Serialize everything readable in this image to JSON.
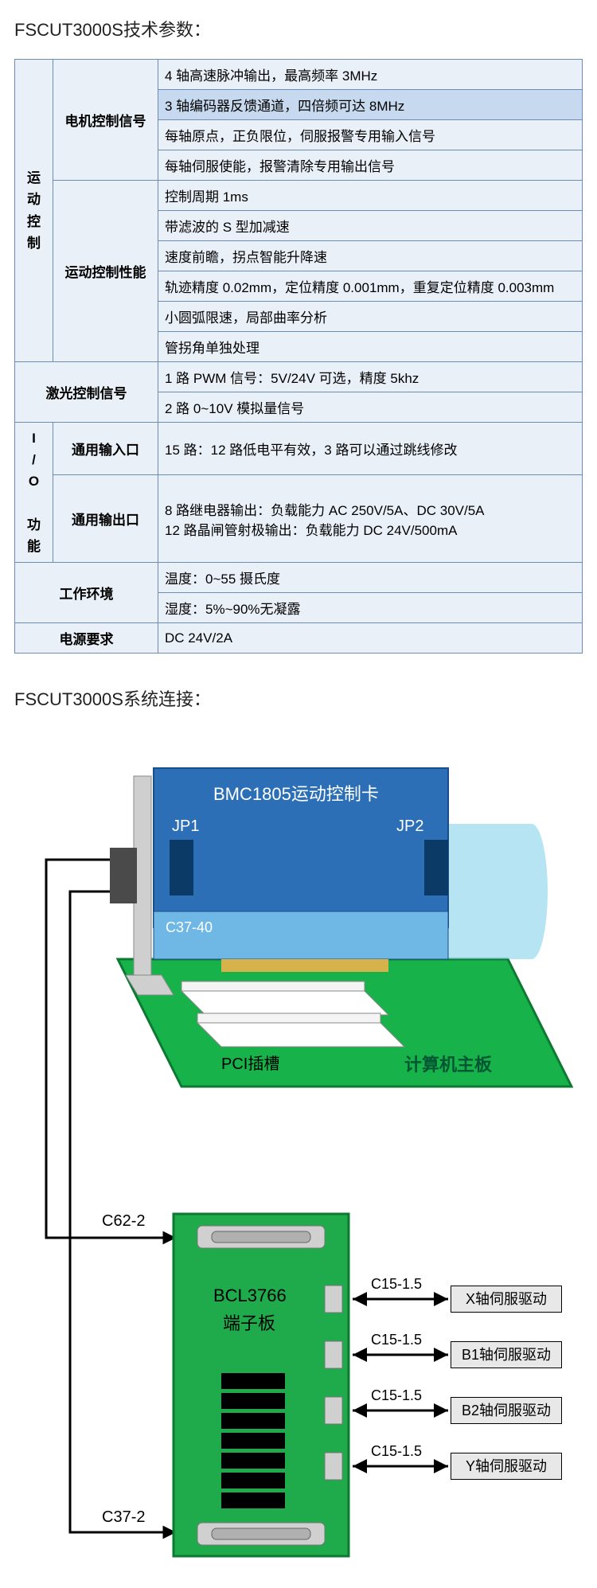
{
  "titles": {
    "specs": "FSCUT3000S技术参数：",
    "conn": "FSCUT3000S系统连接："
  },
  "spec_table": {
    "motion_vert": "运动控制",
    "motor_sig": "电机控制信号",
    "motor_rows": [
      "4 轴高速脉冲输出，最高频率 3MHz",
      "3 轴编码器反馈通道，四倍频可达 8MHz",
      "每轴原点，正负限位，伺服报警专用输入信号",
      "每轴伺服使能，报警清除专用输出信号"
    ],
    "motion_perf": "运动控制性能",
    "motion_rows": [
      "控制周期 1ms",
      "带滤波的 S 型加减速",
      "速度前瞻，拐点智能升降速",
      "轨迹精度 0.02mm，定位精度 0.001mm，重复定位精度 0.003mm",
      "小圆弧限速，局部曲率分析",
      "管拐角单独处理"
    ],
    "laser_lbl": "激光控制信号",
    "laser_rows": [
      "1 路 PWM 信号：5V/24V 可选，精度 5khz",
      "2 路 0~10V 模拟量信号"
    ],
    "io_lbl": "I/O 功能",
    "io_in_lbl": "通用输入口",
    "io_in": "15 路：12 路低电平有效，3 路可以通过跳线修改",
    "io_out_lbl": "通用输出口",
    "io_out": "8 路继电器输出：负载能力  AC 250V/5A、DC 30V/5A\n12 路晶闸管射极输出：负载能力  DC 24V/500mA",
    "env_lbl": "工作环境",
    "env_rows": [
      "温度：0~55 摄氏度",
      "湿度：5%~90%无凝露"
    ],
    "power_lbl": "电源要求",
    "power_val": "DC 24V/2A"
  },
  "diagram": {
    "card_title": "BMC1805运动控制卡",
    "jp1": "JP1",
    "jp2": "JP2",
    "c37_40": "C37-40",
    "pci_slot": "PCI插槽",
    "motherboard": "计算机主板",
    "c62_2": "C62-2",
    "c37_2": "C37-2",
    "terminal_name": "BCL3766",
    "terminal_sub": "端子板",
    "cable": "C15-1.5",
    "drives": [
      "X轴伺服驱动",
      "B1轴伺服驱动",
      "B2轴伺服驱动",
      "Y轴伺服驱动"
    ],
    "colors": {
      "card_fill": "#2d6fb6",
      "card_stroke": "#1a4e8a",
      "cylinder": "#7ecfea",
      "motherboard": "#17b24a",
      "terminal_fill": "#1faa4b",
      "terminal_stroke": "#0d7a32",
      "slot_fill": "#ffffff",
      "slot_stroke": "#888888",
      "connector_fill": "#d0d0d0",
      "drive_fill": "#e8e8e8"
    }
  }
}
